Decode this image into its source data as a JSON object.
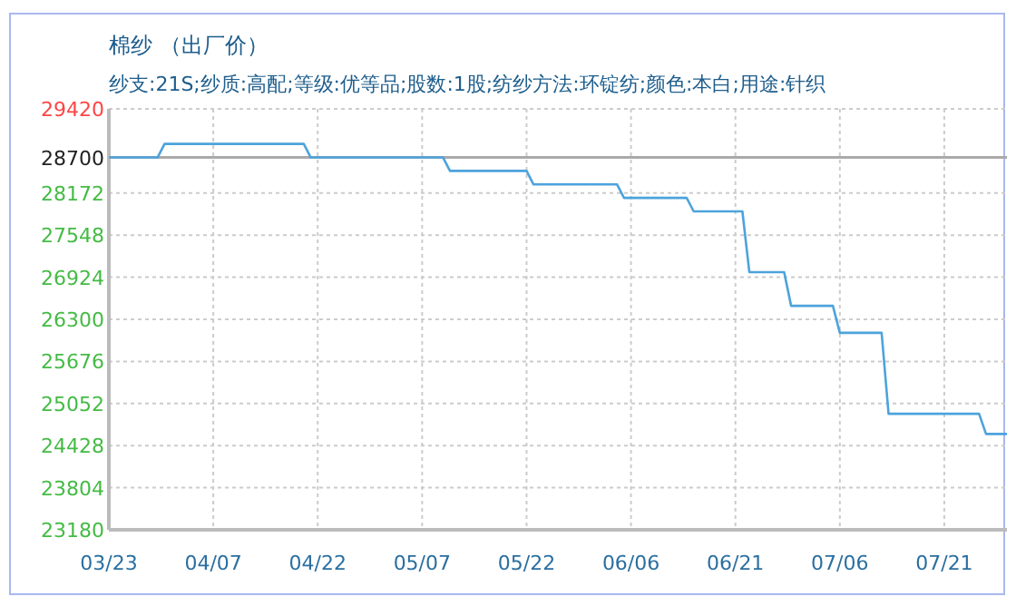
{
  "chart_data": {
    "type": "line",
    "title": "棉纱 （出厂价）",
    "subtitle": "纱支:21S;纱质:高配;等级:优等品;股数:1股;纺纱方法:环锭纺;颜色:本白;用途:针织",
    "x": [
      "--03-23",
      "--03-30",
      "--03-31",
      "--04-20",
      "--04-21",
      "--05-10",
      "--05-11",
      "--05-22",
      "--05-23",
      "--06-04",
      "--06-05",
      "--06-14",
      "--06-15",
      "--06-22",
      "--06-23",
      "--06-28",
      "--06-29",
      "--07-05",
      "--07-06",
      "--07-12",
      "--07-13",
      "--07-26",
      "--07-27",
      "--07-30"
    ],
    "series": [
      {
        "color": "#4da3dc",
        "values": [
          28700,
          28700,
          28900,
          28900,
          28700,
          28700,
          28500,
          28500,
          28300,
          28300,
          28100,
          28100,
          27900,
          27900,
          27000,
          27000,
          26500,
          26500,
          26100,
          26100,
          24900,
          24900,
          24600,
          24600
        ]
      }
    ],
    "xlim": [
      "--03-23",
      "--07-30"
    ],
    "xticks": [
      {
        "value": "--03-23",
        "label": "03/23"
      },
      {
        "value": "--04-07",
        "label": "04/07"
      },
      {
        "value": "--04-22",
        "label": "04/22"
      },
      {
        "value": "--05-07",
        "label": "05/07"
      },
      {
        "value": "--05-22",
        "label": "05/22"
      },
      {
        "value": "--06-06",
        "label": "06/06"
      },
      {
        "value": "--06-21",
        "label": "06/21"
      },
      {
        "value": "--07-06",
        "label": "07/06"
      },
      {
        "value": "--07-21",
        "label": "07/21"
      }
    ],
    "ylim": [
      23180,
      29420
    ],
    "yticks": [
      23180,
      23804,
      24428,
      25052,
      25676,
      26300,
      26924,
      27548,
      28172,
      29420
    ],
    "ref_lines": [
      {
        "axis": "y",
        "value": 28700,
        "label": "28700",
        "color": "#aaaaaa"
      }
    ],
    "grid": true,
    "marker": "none",
    "line_style": "solid"
  }
}
